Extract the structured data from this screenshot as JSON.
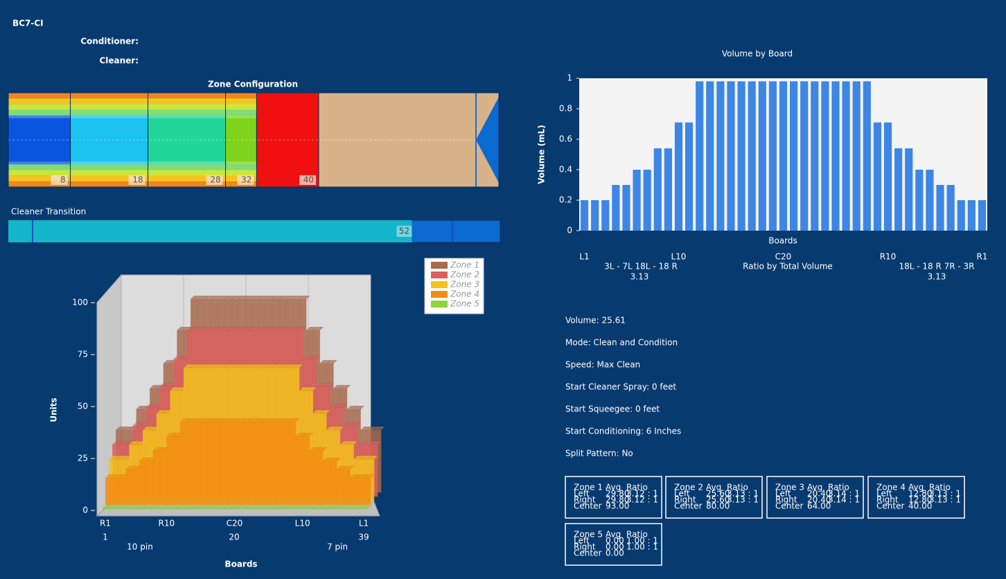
{
  "header": {
    "title": "BC7-CI",
    "conditioner": "Conditioner:",
    "cleaner": "Cleaner:"
  },
  "zone_configuration": {
    "title": "Zone Configuration",
    "segments": [
      {
        "end": 8,
        "color": "#0a55e0"
      },
      {
        "end": 18,
        "color": "#1cc2f0"
      },
      {
        "end": 28,
        "color": "#22d69a"
      },
      {
        "end": 32,
        "color": "#7ed41c"
      },
      {
        "end": 40,
        "color": "#f01010"
      }
    ],
    "remainder_color": "#d8b38a"
  },
  "cleaner_transition": {
    "label": "Cleaner Transition",
    "value": 52,
    "color": "#13b6c9"
  },
  "chart_data": [
    {
      "type": "bar",
      "title": "Volume by Board",
      "x_label": "Boards",
      "y_label": "Volume (mL)",
      "categories": [
        "L1",
        null,
        null,
        null,
        null,
        null,
        null,
        null,
        null,
        "L10",
        null,
        null,
        null,
        null,
        null,
        null,
        null,
        null,
        null,
        "C20",
        null,
        null,
        null,
        null,
        null,
        null,
        null,
        null,
        null,
        "R10",
        null,
        null,
        null,
        null,
        null,
        null,
        null,
        null,
        "R1"
      ],
      "values": [
        0.2,
        0.2,
        0.2,
        0.3,
        0.3,
        0.4,
        0.4,
        0.54,
        0.54,
        0.71,
        0.71,
        0.98,
        0.98,
        0.98,
        0.98,
        0.98,
        0.98,
        0.98,
        0.98,
        0.98,
        0.98,
        0.98,
        0.98,
        0.98,
        0.98,
        0.98,
        0.98,
        0.98,
        0.71,
        0.71,
        0.54,
        0.54,
        0.4,
        0.4,
        0.3,
        0.3,
        0.2,
        0.2,
        0.2
      ],
      "color": "#3d86e6",
      "ylim": [
        0,
        1
      ],
      "yticks": [
        0,
        0.2,
        0.4,
        0.6,
        0.8,
        1
      ],
      "annotations": [
        "3L - 7L  18L - 18 R",
        "3.13",
        "Ratio by Total Volume",
        "18L - 18 R  7R - 3R",
        "3.13"
      ]
    },
    {
      "type": "area",
      "x_label": "Boards",
      "y_label": "Units",
      "categories": [
        "R1",
        null,
        null,
        null,
        null,
        null,
        null,
        null,
        null,
        "R10",
        null,
        null,
        null,
        null,
        null,
        null,
        null,
        null,
        null,
        "C20",
        null,
        null,
        null,
        null,
        null,
        null,
        null,
        null,
        null,
        "L10",
        null,
        null,
        null,
        null,
        null,
        null,
        null,
        null,
        "L1"
      ],
      "series": [
        {
          "name": "Zone 1",
          "color": "#a86a4e",
          "values": [
            30,
            30,
            30,
            40,
            40,
            50,
            50,
            62,
            62,
            78,
            78,
            93,
            93,
            93,
            93,
            93,
            93,
            93,
            93,
            93,
            93,
            93,
            93,
            93,
            93,
            93,
            93,
            93,
            78,
            78,
            62,
            62,
            50,
            50,
            40,
            40,
            30,
            30,
            30
          ]
        },
        {
          "name": "Zone 2",
          "color": "#d9605f",
          "values": [
            25,
            25,
            25,
            34,
            34,
            43,
            43,
            53,
            53,
            66,
            66,
            80,
            80,
            80,
            80,
            80,
            80,
            80,
            80,
            80,
            80,
            80,
            80,
            80,
            80,
            80,
            80,
            80,
            66,
            66,
            53,
            53,
            43,
            43,
            34,
            34,
            25,
            25,
            25
          ]
        },
        {
          "name": "Zone 3",
          "color": "#f3c21c",
          "values": [
            20,
            20,
            20,
            27,
            27,
            34,
            34,
            42,
            42,
            53,
            53,
            64,
            64,
            64,
            64,
            64,
            64,
            64,
            64,
            64,
            64,
            64,
            64,
            64,
            64,
            64,
            64,
            64,
            53,
            53,
            42,
            42,
            34,
            34,
            27,
            27,
            20,
            20,
            20
          ]
        },
        {
          "name": "Zone 4",
          "color": "#f28d12",
          "values": [
            13,
            13,
            13,
            17,
            17,
            21,
            21,
            26,
            26,
            33,
            33,
            40,
            40,
            40,
            40,
            40,
            40,
            40,
            40,
            40,
            40,
            40,
            40,
            40,
            40,
            40,
            40,
            40,
            33,
            33,
            26,
            26,
            21,
            21,
            17,
            17,
            13,
            13,
            13
          ]
        },
        {
          "name": "Zone 5",
          "color": "#8ed43d",
          "values": [
            0,
            0,
            0,
            0,
            0,
            0,
            0,
            0,
            0,
            0,
            0,
            0,
            0,
            0,
            0,
            0,
            0,
            0,
            0,
            0,
            0,
            0,
            0,
            0,
            0,
            0,
            0,
            0,
            0,
            0,
            0,
            0,
            0,
            0,
            0,
            0,
            0,
            0,
            0
          ]
        }
      ],
      "ylim": [
        0,
        100
      ],
      "yticks": [
        0,
        25,
        50,
        75,
        100
      ],
      "annotations": [
        "1",
        "20",
        "39",
        "10 pin",
        "7 pin"
      ]
    }
  ],
  "info": [
    "Volume: 25.61",
    "Mode: Clean and Condition",
    "Speed: Max Clean",
    "Start Cleaner Spray: 0 feet",
    "Start Squeegee: 0 feet",
    "Start Conditioning: 6 Inches",
    "Split Pattern: No"
  ],
  "zone_boxes": [
    {
      "header": [
        "Zone 1",
        "Avg",
        "Ratio"
      ],
      "rows": [
        [
          "Left",
          "29.80",
          "3.12 : 1"
        ],
        [
          "Right",
          "29.80",
          "3.12 : 1"
        ],
        [
          "Center",
          "93.00"
        ]
      ]
    },
    {
      "header": [
        "Zone 2",
        "Avg",
        "Ratio"
      ],
      "rows": [
        [
          "Left",
          "25.60",
          "3.13 : 1"
        ],
        [
          "Right",
          "25.60",
          "3.13 : 1"
        ],
        [
          "Center",
          "80.00"
        ]
      ]
    },
    {
      "header": [
        "Zone 3",
        "Avg",
        "Ratio"
      ],
      "rows": [
        [
          "Left",
          "20.40",
          "3.14 : 1"
        ],
        [
          "Right",
          "20.40",
          "3.14 : 1"
        ],
        [
          "Center",
          "64.00"
        ]
      ]
    },
    {
      "header": [
        "Zone 4",
        "Avg",
        "Ratio"
      ],
      "rows": [
        [
          "Left",
          "12.80",
          "3.13 : 1"
        ],
        [
          "Right",
          "12.80",
          "3.13 : 1"
        ],
        [
          "Center",
          "40.00"
        ]
      ]
    },
    {
      "header": [
        "Zone 5",
        "Avg",
        "Ratio"
      ],
      "rows": [
        [
          "Left",
          "0.00",
          "1.00 : 1"
        ],
        [
          "Right",
          "0.00",
          "1.00 : 1"
        ],
        [
          "Center",
          "0.00"
        ]
      ]
    }
  ]
}
